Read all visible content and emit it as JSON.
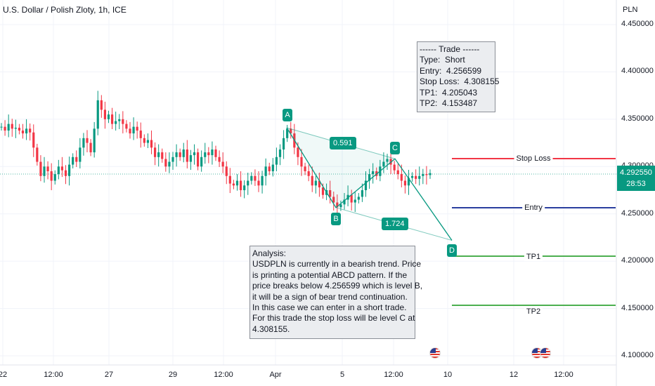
{
  "title": "U.S. Dollar / Polish Zloty, 1h, ICE",
  "currency": "PLN",
  "price_axis": [
    "4.450000",
    "4.400000",
    "4.350000",
    "4.300000",
    "4.250000",
    "4.200000",
    "4.150000",
    "4.100000"
  ],
  "time_axis": [
    "22",
    "12:00",
    "27",
    "29",
    "12:00",
    "Apr",
    "5",
    "12:00",
    "10",
    "12",
    "12:00"
  ],
  "current_price": {
    "price": "4.292550",
    "countdown": "28:53"
  },
  "trade_box": {
    "lines": [
      "------ Trade ------",
      "Type:  Short",
      "Entry:  4.256599",
      "Stop Loss:  4.308155",
      "TP1:  4.205043",
      "TP2:  4.153487"
    ]
  },
  "analysis_box": {
    "lines": [
      "Analysis:",
      "USDPLN is currently in a bearish trend. Price",
      "is printing a potential ABCD pattern. If the",
      "price breaks below 4.256599 which is level B,",
      "it will be a sign of bear trend continuation.",
      "In this case we can enter in a short trade.",
      "For this trade the stop loss will be level C at",
      "4.308155."
    ]
  },
  "pattern": {
    "points": [
      "A",
      "B",
      "C",
      "D"
    ],
    "ratios": [
      "0.591",
      "1.724"
    ]
  },
  "levels": [
    {
      "label": "Stop Loss",
      "price": 4.308155,
      "color": "#f23645"
    },
    {
      "label": "Entry",
      "price": 4.256599,
      "color": "#2a3f9f"
    },
    {
      "label": "TP1",
      "price": 4.205043,
      "color": "#4caf50"
    },
    {
      "label": "TP2",
      "price": 4.153487,
      "color": "#4caf50"
    }
  ],
  "colors": {
    "up": "#089981",
    "down": "#f23645",
    "pattern": "#089981",
    "grid": "#f0f3fa"
  },
  "chart_data": {
    "type": "candlestick",
    "title": "U.S. Dollar / Polish Zloty, 1h, ICE",
    "ylim": [
      4.095,
      4.475
    ],
    "grid": true,
    "pattern_prices": {
      "A": 4.341,
      "B": 4.256599,
      "C": 4.308155,
      "D": 4.222
    },
    "close_path": [
      4.342,
      4.338,
      4.345,
      4.34,
      4.341,
      4.338,
      4.335,
      4.34,
      4.336,
      4.32,
      4.305,
      4.29,
      4.3,
      4.295,
      4.285,
      4.292,
      4.3,
      4.296,
      4.29,
      4.302,
      4.31,
      4.305,
      4.32,
      4.33,
      4.325,
      4.315,
      4.34,
      4.37,
      4.36,
      4.35,
      4.355,
      4.345,
      4.348,
      4.35,
      4.345,
      4.34,
      4.335,
      4.342,
      4.338,
      4.33,
      4.325,
      4.328,
      4.32,
      4.31,
      4.315,
      4.308,
      4.3,
      4.305,
      4.31,
      4.315,
      4.31,
      4.318,
      4.305,
      4.312,
      4.315,
      4.3,
      4.31,
      4.315,
      4.312,
      4.318,
      4.31,
      4.305,
      4.3,
      4.29,
      4.282,
      4.28,
      4.285,
      4.275,
      4.28,
      4.285,
      4.29,
      4.285,
      4.28,
      4.29,
      4.3,
      4.295,
      4.302,
      4.31,
      4.318,
      4.33,
      4.34,
      4.335,
      4.32,
      4.31,
      4.3,
      4.295,
      4.29,
      4.28,
      4.285,
      4.278,
      4.27,
      4.275,
      4.268,
      4.262,
      4.257,
      4.26,
      4.265,
      4.27,
      4.262,
      4.265,
      4.268,
      4.275,
      4.285,
      4.292,
      4.295,
      4.29,
      4.3,
      4.305,
      4.308,
      4.302,
      4.296,
      4.292,
      4.285,
      4.28,
      4.288,
      4.29,
      4.287,
      4.29,
      4.292,
      4.291,
      4.293
    ]
  }
}
